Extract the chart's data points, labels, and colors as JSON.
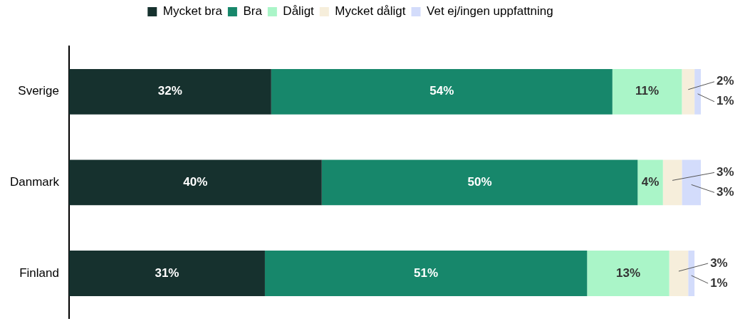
{
  "chart_data": {
    "type": "bar",
    "orientation": "horizontal",
    "stacked": true,
    "categories": [
      "Sverige",
      "Danmark",
      "Finland"
    ],
    "series": [
      {
        "name": "Mycket bra",
        "color": "#16312e",
        "values": [
          32,
          40,
          31
        ],
        "value_labels": [
          "32%",
          "40%",
          "31%"
        ]
      },
      {
        "name": "Bra",
        "color": "#17876b",
        "values": [
          54,
          50,
          51
        ],
        "value_labels": [
          "54%",
          "50%",
          "51%"
        ]
      },
      {
        "name": "Dåligt",
        "color": "#aaf5c8",
        "values": [
          11,
          4,
          13
        ],
        "value_labels": [
          "11%",
          "4%",
          "13%"
        ]
      },
      {
        "name": "Mycket dåligt",
        "color": "#f6eedb",
        "values": [
          2,
          3,
          3
        ],
        "value_labels": [
          "2%",
          "3%",
          "3%"
        ]
      },
      {
        "name": "Vet ej/ingen uppfattning",
        "color": "#d3dcfb",
        "values": [
          1,
          3,
          1
        ],
        "value_labels": [
          "1%",
          "3%",
          "1%"
        ]
      }
    ],
    "xlim": [
      0,
      100
    ],
    "tick_labels": "y",
    "legend": "top"
  }
}
